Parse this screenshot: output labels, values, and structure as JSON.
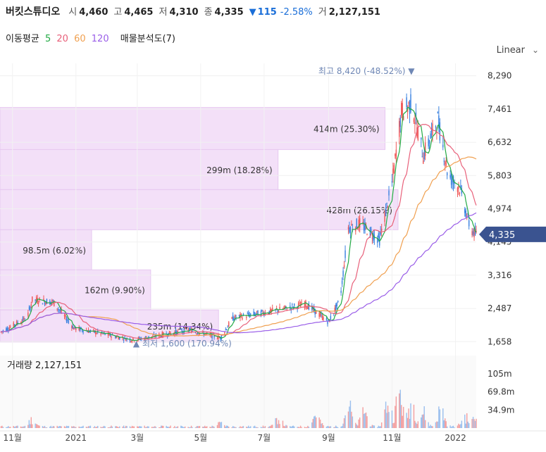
{
  "header": {
    "name": "버킷스튜디오",
    "open_label": "시",
    "open": "4,460",
    "high_label": "고",
    "high": "4,465",
    "low_label": "저",
    "low": "4,310",
    "close_label": "종",
    "close": "4,335",
    "change_arrow": "▼",
    "change": "115",
    "change_pct": "-2.58%",
    "volume_label": "거",
    "volume": "2,127,151"
  },
  "ma": {
    "label": "이동평균",
    "p5": "5",
    "p20": "20",
    "p60": "60",
    "p120": "120",
    "profile": "매물분석도(7)"
  },
  "scale_mode": "Linear",
  "colors": {
    "up": "#f05a5a",
    "down": "#3b82e0",
    "ma5": "#22aa44",
    "ma20": "#e8607a",
    "ma60": "#f0a050",
    "ma120": "#9a5ee8",
    "profile": "#f3e0f8",
    "price_tag": "#3a5390"
  },
  "chart_data": {
    "type": "candlestick",
    "price_axis": {
      "ticks": [
        "8,290",
        "7,461",
        "6,632",
        "5,803",
        "4,974",
        "4,145",
        "3,316",
        "2,487",
        "1,658"
      ],
      "ylim": [
        1400,
        8600
      ]
    },
    "x_axis": {
      "ticks": [
        "11월",
        "2021",
        "3월",
        "5월",
        "7월",
        "9월",
        "11월",
        "2022"
      ]
    },
    "last_price": "4,335",
    "high_annotation": "최고 8,420 (-48.52%)",
    "low_annotation": "최저 1,600 (170.94%)",
    "volume_label": "거래량 2,127,151",
    "volume_axis": {
      "ticks": [
        "105m",
        "69.8m",
        "34.9m"
      ],
      "max": 140
    },
    "price_levels": [
      {
        "label": "414m (25.30%)",
        "low": 6450,
        "high": 7500
      },
      {
        "label": "299m (18.28%)",
        "low": 5450,
        "high": 6450
      },
      {
        "label": "428m (26.15%)",
        "low": 4450,
        "high": 5450
      },
      {
        "label": "98.5m (6.02%)",
        "low": 3450,
        "high": 4450
      },
      {
        "label": "162m (9.90%)",
        "low": 2450,
        "high": 3450
      },
      {
        "label": "235m (14.34%)",
        "low": 1650,
        "high": 2450
      }
    ],
    "price_series": [
      [
        "2020-10-21",
        1900
      ],
      [
        "2020-11-15",
        2250
      ],
      [
        "2020-11-20",
        2700
      ],
      [
        "2020-12-10",
        2650
      ],
      [
        "2020-12-30",
        2000
      ],
      [
        "2021-02-25",
        1700
      ],
      [
        "2021-04-20",
        1950
      ],
      [
        "2021-05-20",
        1750
      ],
      [
        "2021-06-01",
        2250
      ],
      [
        "2021-07-15",
        2450
      ],
      [
        "2021-08-10",
        2600
      ],
      [
        "2021-09-01",
        2150
      ],
      [
        "2021-09-12",
        2700
      ],
      [
        "2021-09-20",
        4500
      ],
      [
        "2021-10-01",
        4600
      ],
      [
        "2021-10-20",
        4200
      ],
      [
        "2021-11-01",
        5600
      ],
      [
        "2021-11-10",
        7400
      ],
      [
        "2021-11-20",
        7600
      ],
      [
        "2021-12-01",
        6300
      ],
      [
        "2021-12-15",
        7200
      ],
      [
        "2021-12-25",
        5800
      ],
      [
        "2022-01-05",
        5500
      ],
      [
        "2022-01-15",
        4500
      ],
      [
        "2022-01-20",
        4335
      ]
    ],
    "volume_peaks": [
      [
        "2020-11-20",
        18
      ],
      [
        "2021-05-20",
        8
      ],
      [
        "2021-07-15",
        20
      ],
      [
        "2021-08-20",
        32
      ],
      [
        "2021-09-20",
        55
      ],
      [
        "2021-10-05",
        40
      ],
      [
        "2021-10-28",
        60
      ],
      [
        "2021-11-08",
        85
      ],
      [
        "2021-11-20",
        65
      ],
      [
        "2021-12-01",
        35
      ],
      [
        "2021-12-18",
        45
      ],
      [
        "2022-01-10",
        25
      ],
      [
        "2022-01-20",
        20
      ]
    ]
  }
}
